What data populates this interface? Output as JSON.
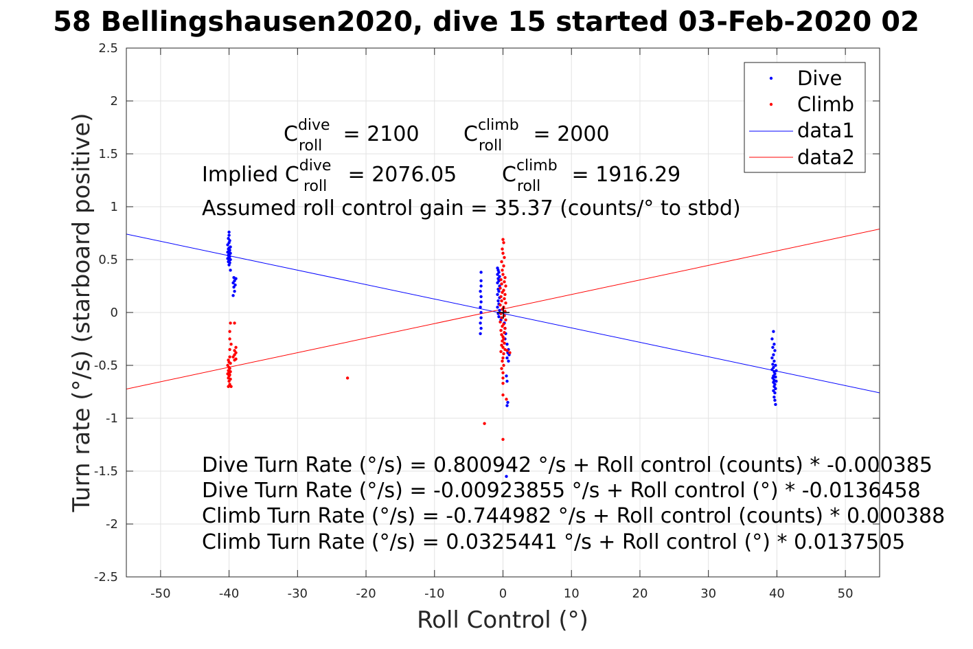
{
  "chart_data": {
    "type": "scatter",
    "title": "58 Bellingshausen2020, dive 15 started 03-Feb-2020 02",
    "xlabel": "Roll Control (°)",
    "ylabel": "Turn rate (°/s) (starboard positive)",
    "xlim": [
      -55,
      55
    ],
    "ylim": [
      -2.5,
      2.5
    ],
    "x_ticks": [
      -50,
      -40,
      -30,
      -20,
      -10,
      0,
      10,
      20,
      30,
      40,
      50
    ],
    "x_tick_labels": [
      "-50",
      "-40",
      "-30",
      "-20",
      "-10",
      "0",
      "10",
      "20",
      "30",
      "40",
      "50"
    ],
    "y_ticks": [
      -2.5,
      -2,
      -1.5,
      -1,
      -0.5,
      0,
      0.5,
      1,
      1.5,
      2,
      2.5
    ],
    "y_tick_labels": [
      "-2.5",
      "-2",
      "-1.5",
      "-1",
      "-0.5",
      "0",
      "0.5",
      "1",
      "1.5",
      "2",
      "2.5"
    ],
    "grid": true,
    "legend_position": "top-right",
    "legend": [
      "Dive",
      "Climb",
      "data1",
      "data2"
    ],
    "series": [
      {
        "name": "Dive",
        "kind": "points",
        "color": "#0000ff",
        "points": [
          [
            -40.0,
            0.76
          ],
          [
            -40.0,
            0.73
          ],
          [
            -40.1,
            0.7
          ],
          [
            -39.9,
            0.68
          ],
          [
            -40.0,
            0.66
          ],
          [
            -40.2,
            0.64
          ],
          [
            -39.8,
            0.62
          ],
          [
            -40.0,
            0.61
          ],
          [
            -40.1,
            0.6
          ],
          [
            -39.9,
            0.59
          ],
          [
            -40.0,
            0.58
          ],
          [
            -40.2,
            0.57
          ],
          [
            -39.8,
            0.56
          ],
          [
            -40.0,
            0.55
          ],
          [
            -40.1,
            0.54
          ],
          [
            -39.9,
            0.53
          ],
          [
            -40.0,
            0.52
          ],
          [
            -40.2,
            0.51
          ],
          [
            -39.8,
            0.5
          ],
          [
            -40.0,
            0.49
          ],
          [
            -40.1,
            0.48
          ],
          [
            -39.9,
            0.47
          ],
          [
            -40.0,
            0.45
          ],
          [
            -39.8,
            0.4
          ],
          [
            -39.3,
            0.33
          ],
          [
            -39.0,
            0.32
          ],
          [
            -39.2,
            0.3
          ],
          [
            -39.4,
            0.28
          ],
          [
            -39.1,
            0.26
          ],
          [
            -39.3,
            0.24
          ],
          [
            -39.2,
            0.2
          ],
          [
            -39.4,
            0.16
          ],
          [
            -3.2,
            0.38
          ],
          [
            -3.2,
            0.3
          ],
          [
            -3.2,
            0.25
          ],
          [
            -3.3,
            0.2
          ],
          [
            -3.2,
            0.15
          ],
          [
            -3.2,
            0.1
          ],
          [
            -3.3,
            0.05
          ],
          [
            -3.2,
            0.0
          ],
          [
            -3.2,
            -0.05
          ],
          [
            -3.3,
            -0.1
          ],
          [
            -3.2,
            -0.15
          ],
          [
            -3.3,
            -0.2
          ],
          [
            -0.8,
            0.42
          ],
          [
            -0.7,
            0.4
          ],
          [
            -0.6,
            0.38
          ],
          [
            -0.8,
            0.36
          ],
          [
            -0.5,
            0.34
          ],
          [
            -0.7,
            0.32
          ],
          [
            -0.6,
            0.3
          ],
          [
            -0.8,
            0.28
          ],
          [
            -0.5,
            0.25
          ],
          [
            -0.7,
            0.22
          ],
          [
            -0.6,
            0.2
          ],
          [
            -0.8,
            0.17
          ],
          [
            -0.5,
            0.14
          ],
          [
            -0.7,
            0.11
          ],
          [
            -0.6,
            0.08
          ],
          [
            -0.8,
            0.05
          ],
          [
            -0.5,
            0.02
          ],
          [
            -0.7,
            -0.01
          ],
          [
            -0.6,
            -0.04
          ],
          [
            -0.3,
            -0.07
          ],
          [
            0.2,
            -0.1
          ],
          [
            0.3,
            -0.15
          ],
          [
            0.4,
            -0.2
          ],
          [
            0.3,
            -0.25
          ],
          [
            0.6,
            -0.3
          ],
          [
            0.8,
            -0.35
          ],
          [
            0.7,
            -0.38
          ],
          [
            0.9,
            -0.4
          ],
          [
            0.6,
            -0.43
          ],
          [
            0.8,
            -0.46
          ],
          [
            0.5,
            -0.6
          ],
          [
            0.6,
            -0.65
          ],
          [
            0.7,
            -0.85
          ],
          [
            0.6,
            -0.88
          ],
          [
            0.5,
            -1.55
          ],
          [
            39.5,
            -0.18
          ],
          [
            39.3,
            -0.25
          ],
          [
            39.6,
            -0.3
          ],
          [
            39.4,
            -0.33
          ],
          [
            39.7,
            -0.36
          ],
          [
            39.5,
            -0.4
          ],
          [
            39.3,
            -0.43
          ],
          [
            39.6,
            -0.46
          ],
          [
            39.4,
            -0.49
          ],
          [
            39.8,
            -0.5
          ],
          [
            39.5,
            -0.52
          ],
          [
            39.3,
            -0.54
          ],
          [
            39.9,
            -0.55
          ],
          [
            39.6,
            -0.56
          ],
          [
            39.7,
            -0.58
          ],
          [
            39.5,
            -0.6
          ],
          [
            39.8,
            -0.61
          ],
          [
            39.4,
            -0.62
          ],
          [
            39.6,
            -0.64
          ],
          [
            39.9,
            -0.65
          ],
          [
            39.5,
            -0.66
          ],
          [
            39.7,
            -0.68
          ],
          [
            39.6,
            -0.7
          ],
          [
            39.8,
            -0.72
          ],
          [
            39.5,
            -0.74
          ],
          [
            39.7,
            -0.76
          ],
          [
            39.6,
            -0.8
          ],
          [
            39.7,
            -0.83
          ],
          [
            39.8,
            -0.87
          ]
        ]
      },
      {
        "name": "Climb",
        "kind": "points",
        "color": "#ff0000",
        "points": [
          [
            -39.8,
            -0.1
          ],
          [
            -39.2,
            -0.1
          ],
          [
            -39.9,
            -0.18
          ],
          [
            -39.9,
            -0.25
          ],
          [
            -39.7,
            -0.3
          ],
          [
            -39.9,
            -0.35
          ],
          [
            -39.0,
            -0.33
          ],
          [
            -39.2,
            -0.36
          ],
          [
            -39.0,
            -0.38
          ],
          [
            -39.2,
            -0.4
          ],
          [
            -39.4,
            -0.42
          ],
          [
            -39.0,
            -0.44
          ],
          [
            -39.2,
            -0.45
          ],
          [
            -39.9,
            -0.42
          ],
          [
            -40.1,
            -0.45
          ],
          [
            -40.0,
            -0.47
          ],
          [
            -39.8,
            -0.48
          ],
          [
            -40.2,
            -0.5
          ],
          [
            -40.0,
            -0.52
          ],
          [
            -39.9,
            -0.53
          ],
          [
            -40.1,
            -0.55
          ],
          [
            -39.8,
            -0.56
          ],
          [
            -40.0,
            -0.57
          ],
          [
            -40.2,
            -0.58
          ],
          [
            -39.9,
            -0.59
          ],
          [
            -40.0,
            -0.6
          ],
          [
            -40.1,
            -0.62
          ],
          [
            -39.8,
            -0.63
          ],
          [
            -40.0,
            -0.65
          ],
          [
            -39.9,
            -0.68
          ],
          [
            -40.1,
            -0.7
          ],
          [
            -39.7,
            -0.7
          ],
          [
            -22.7,
            -0.62
          ],
          [
            -2.7,
            -1.05
          ],
          [
            0.0,
            0.69
          ],
          [
            0.1,
            0.66
          ],
          [
            -0.1,
            0.6
          ],
          [
            0.0,
            0.56
          ],
          [
            0.2,
            0.52
          ],
          [
            -0.2,
            0.48
          ],
          [
            0.1,
            0.44
          ],
          [
            -0.1,
            0.4
          ],
          [
            0.0,
            0.36
          ],
          [
            0.3,
            0.33
          ],
          [
            -0.3,
            0.31
          ],
          [
            0.2,
            0.29
          ],
          [
            -0.2,
            0.27
          ],
          [
            0.4,
            0.25
          ],
          [
            -0.4,
            0.23
          ],
          [
            0.1,
            0.21
          ],
          [
            -0.1,
            0.19
          ],
          [
            0.3,
            0.17
          ],
          [
            -0.3,
            0.15
          ],
          [
            0.2,
            0.13
          ],
          [
            -0.2,
            0.11
          ],
          [
            0.4,
            0.09
          ],
          [
            -0.4,
            0.07
          ],
          [
            0.1,
            0.05
          ],
          [
            -0.1,
            0.03
          ],
          [
            0.3,
            0.01
          ],
          [
            -0.3,
            -0.01
          ],
          [
            0.2,
            -0.03
          ],
          [
            -0.2,
            -0.05
          ],
          [
            0.4,
            -0.07
          ],
          [
            -0.4,
            -0.09
          ],
          [
            0.1,
            -0.11
          ],
          [
            -0.1,
            -0.13
          ],
          [
            0.3,
            -0.15
          ],
          [
            -0.3,
            -0.17
          ],
          [
            0.2,
            -0.19
          ],
          [
            -0.2,
            -0.21
          ],
          [
            0.0,
            -0.23
          ],
          [
            0.1,
            -0.25
          ],
          [
            -0.1,
            -0.27
          ],
          [
            0.2,
            -0.29
          ],
          [
            -0.2,
            -0.31
          ],
          [
            0.0,
            -0.33
          ],
          [
            0.3,
            -0.35
          ],
          [
            -0.3,
            -0.37
          ],
          [
            0.1,
            -0.39
          ],
          [
            0.6,
            -0.36
          ],
          [
            1.0,
            -0.38
          ],
          [
            0.0,
            -0.43
          ],
          [
            -0.1,
            -0.46
          ],
          [
            0.1,
            -0.5
          ],
          [
            -0.2,
            -0.53
          ],
          [
            0.0,
            -0.57
          ],
          [
            0.0,
            -0.62
          ],
          [
            0.0,
            -0.67
          ],
          [
            0.0,
            -0.78
          ],
          [
            0.5,
            -0.82
          ],
          [
            0.0,
            -1.2
          ]
        ]
      },
      {
        "name": "data1",
        "kind": "line",
        "color": "#0000ff",
        "points": [
          [
            -55,
            0.7413
          ],
          [
            55,
            -0.7597
          ]
        ]
      },
      {
        "name": "data2",
        "kind": "line",
        "color": "#ff0000",
        "points": [
          [
            -55,
            -0.7238
          ],
          [
            55,
            0.7888
          ]
        ]
      }
    ],
    "annotations": {
      "c_dive_label": "C",
      "c_dive_sup": "dive",
      "c_dive_sub": "roll",
      "c_dive_value": " = 2100",
      "c_climb_label": "C",
      "c_climb_sup": "climb",
      "c_climb_sub": "roll",
      "c_climb_value": " = 2000",
      "implied_prefix": "Implied C",
      "implied_dive_sup": "dive",
      "implied_dive_sub": "roll",
      "implied_dive_value": " = 2076.05",
      "implied_climb_label": "C",
      "implied_climb_sup": "climb",
      "implied_climb_sub": "roll",
      "implied_climb_value": " = 1916.29",
      "gain": "Assumed roll control gain = 35.37 (counts/° to stbd)",
      "eq1": "Dive Turn Rate (°/s) = 0.800942 °/s + Roll control (counts) * -0.000385",
      "eq2": "Dive Turn Rate (°/s) = -0.00923855 °/s + Roll control (°) * -0.0136458",
      "eq3": "Climb Turn Rate (°/s) = -0.744982 °/s + Roll control (counts) * 0.000388",
      "eq4": "Climb Turn Rate (°/s) = 0.0325441 °/s + Roll control (°) * 0.0137505"
    }
  }
}
